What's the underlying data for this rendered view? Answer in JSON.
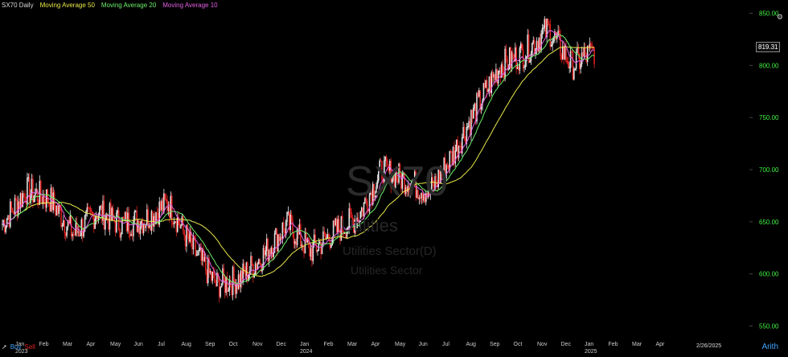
{
  "legend": [
    {
      "label": "SX70 Daily",
      "color": "#d8d8d8"
    },
    {
      "label": "Moving Average 50",
      "color": "#e8e84a"
    },
    {
      "label": "Moving Average 20",
      "color": "#6cf06c"
    },
    {
      "label": "Moving Average 10",
      "color": "#e060e0"
    }
  ],
  "watermark": {
    "symbol": "SX70",
    "line2": "Utilities",
    "line3": "Utilities Sector(D)",
    "line4": "Utilities Sector"
  },
  "bottom": {
    "buy": "Buy",
    "sell": "Sell",
    "scale": "Arith"
  },
  "last_price": "819.31",
  "last_date": "2/26/2025",
  "chart_data": {
    "type": "candlestick",
    "ylim": [
      545,
      855
    ],
    "y_ticks": [
      550,
      600,
      650,
      700,
      750,
      800,
      850
    ],
    "y_tick_labels": [
      "550.00",
      "600.00",
      "650.00",
      "700.00",
      "750.00",
      "800.00",
      "850.00"
    ],
    "x_months": [
      "Jan",
      "Feb",
      "Mar",
      "Apr",
      "May",
      "Jun",
      "Jul",
      "Aug",
      "Sep",
      "Oct",
      "Nov",
      "Dec",
      "Jan",
      "Feb",
      "Mar",
      "Apr",
      "May",
      "Jun",
      "Jul",
      "Aug",
      "Sep",
      "Oct",
      "Nov",
      "Dec",
      "Jan",
      "Feb",
      "Mar",
      "Apr"
    ],
    "x_years": {
      "0": "2023",
      "12": "2024",
      "24": "2025"
    },
    "months_visible": 28,
    "close_by_month": [
      648,
      680,
      672,
      638,
      660,
      648,
      652,
      668,
      625,
      590,
      595,
      618,
      648,
      622,
      640,
      655,
      700,
      690,
      678,
      715,
      760,
      800,
      812,
      835,
      800,
      815,
      819,
      819
    ],
    "colors": {
      "up": "#e8e8e8",
      "down": "#e02020",
      "ma50": "#e8e84a",
      "ma20": "#6cf06c",
      "ma10": "#e060e0",
      "grid_label": "#3ff03f"
    }
  }
}
